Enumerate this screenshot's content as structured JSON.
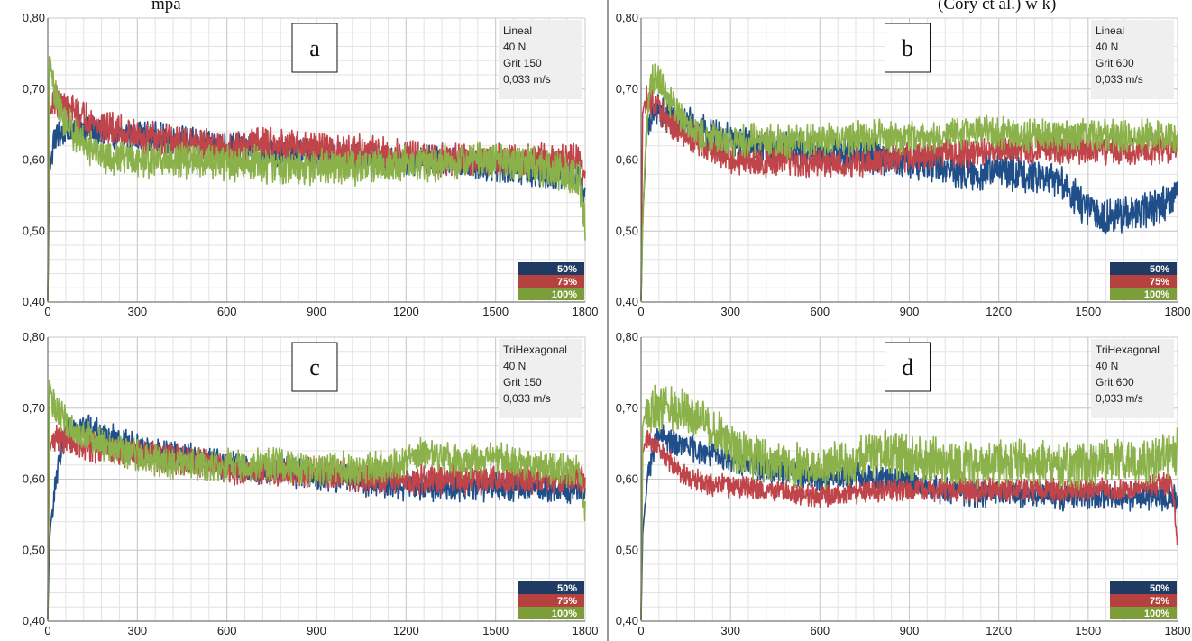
{
  "header": {
    "left_text": "mpa",
    "right_text": "(Cory ct al.) w k)"
  },
  "chart_data": [
    {
      "type": "line",
      "panel_letter": "a",
      "info": [
        "Lineal",
        "40 N",
        "Grit 150",
        "0,033 m/s"
      ],
      "x_ticks": [
        "0",
        "300",
        "600",
        "900",
        "1200",
        "1500",
        "1800"
      ],
      "y_ticks": [
        "0,40",
        "0,50",
        "0,60",
        "0,70",
        "0,80"
      ],
      "xlim": [
        0,
        1800
      ],
      "ylim": [
        0.4,
        0.8
      ],
      "grid": true,
      "legend": [
        "50%",
        "75%",
        "100%"
      ],
      "legend_position": "bottom-right",
      "series": [
        {
          "name": "50%",
          "color": "#1f4e89",
          "noise": 0.018,
          "x": [
            0,
            5,
            20,
            50,
            100,
            200,
            300,
            400,
            500,
            600,
            700,
            800,
            900,
            1000,
            1100,
            1200,
            1300,
            1400,
            1500,
            1600,
            1700,
            1780,
            1800
          ],
          "y": [
            0.4,
            0.58,
            0.63,
            0.64,
            0.645,
            0.635,
            0.635,
            0.63,
            0.625,
            0.62,
            0.615,
            0.61,
            0.61,
            0.605,
            0.6,
            0.6,
            0.6,
            0.595,
            0.59,
            0.585,
            0.58,
            0.575,
            0.55
          ]
        },
        {
          "name": "75%",
          "color": "#c0454a",
          "noise": 0.02,
          "x": [
            0,
            5,
            20,
            50,
            100,
            200,
            300,
            400,
            500,
            600,
            700,
            800,
            900,
            1000,
            1100,
            1200,
            1300,
            1400,
            1500,
            1600,
            1700,
            1780,
            1800
          ],
          "y": [
            0.4,
            0.66,
            0.685,
            0.675,
            0.665,
            0.645,
            0.635,
            0.625,
            0.62,
            0.615,
            0.625,
            0.62,
            0.615,
            0.615,
            0.61,
            0.605,
            0.6,
            0.6,
            0.6,
            0.6,
            0.6,
            0.6,
            0.57
          ]
        },
        {
          "name": "100%",
          "color": "#8bb14a",
          "noise": 0.022,
          "x": [
            0,
            5,
            20,
            50,
            100,
            200,
            300,
            400,
            500,
            600,
            700,
            800,
            900,
            1000,
            1100,
            1200,
            1300,
            1400,
            1500,
            1600,
            1700,
            1780,
            1800
          ],
          "y": [
            0.4,
            0.75,
            0.7,
            0.66,
            0.63,
            0.605,
            0.6,
            0.6,
            0.6,
            0.595,
            0.595,
            0.59,
            0.59,
            0.59,
            0.59,
            0.595,
            0.595,
            0.6,
            0.6,
            0.595,
            0.585,
            0.575,
            0.51
          ]
        }
      ]
    },
    {
      "type": "line",
      "panel_letter": "b",
      "info": [
        "Lineal",
        "40 N",
        "Grit 600",
        "0,033 m/s"
      ],
      "x_ticks": [
        "0",
        "300",
        "600",
        "900",
        "1200",
        "1500",
        "1800"
      ],
      "y_ticks": [
        "0,40",
        "0,50",
        "0,60",
        "0,70",
        "0,80"
      ],
      "xlim": [
        0,
        1800
      ],
      "ylim": [
        0.4,
        0.8
      ],
      "grid": true,
      "legend": [
        "50%",
        "75%",
        "100%"
      ],
      "legend_position": "bottom-right",
      "series": [
        {
          "name": "50%",
          "color": "#1f4e89",
          "noise": 0.022,
          "x": [
            0,
            5,
            20,
            50,
            100,
            200,
            300,
            400,
            500,
            600,
            700,
            800,
            900,
            1000,
            1100,
            1200,
            1300,
            1400,
            1450,
            1500,
            1550,
            1600,
            1700,
            1780,
            1800
          ],
          "y": [
            0.4,
            0.52,
            0.64,
            0.67,
            0.66,
            0.64,
            0.625,
            0.62,
            0.615,
            0.61,
            0.61,
            0.605,
            0.6,
            0.59,
            0.58,
            0.585,
            0.58,
            0.57,
            0.55,
            0.53,
            0.52,
            0.52,
            0.53,
            0.545,
            0.56
          ]
        },
        {
          "name": "75%",
          "color": "#c0454a",
          "noise": 0.018,
          "x": [
            0,
            5,
            20,
            50,
            100,
            200,
            300,
            400,
            500,
            600,
            700,
            800,
            900,
            1000,
            1100,
            1200,
            1300,
            1400,
            1500,
            1600,
            1700,
            1780,
            1800
          ],
          "y": [
            0.4,
            0.67,
            0.69,
            0.675,
            0.65,
            0.625,
            0.6,
            0.595,
            0.6,
            0.595,
            0.595,
            0.6,
            0.605,
            0.61,
            0.61,
            0.615,
            0.615,
            0.615,
            0.615,
            0.615,
            0.615,
            0.615,
            0.62
          ]
        },
        {
          "name": "100%",
          "color": "#8bb14a",
          "noise": 0.02,
          "x": [
            0,
            5,
            15,
            30,
            50,
            100,
            200,
            300,
            400,
            500,
            600,
            700,
            800,
            900,
            1000,
            1100,
            1200,
            1300,
            1400,
            1500,
            1600,
            1700,
            1780,
            1800
          ],
          "y": [
            0.4,
            0.5,
            0.62,
            0.71,
            0.72,
            0.68,
            0.635,
            0.625,
            0.63,
            0.625,
            0.63,
            0.63,
            0.635,
            0.63,
            0.635,
            0.64,
            0.64,
            0.635,
            0.635,
            0.635,
            0.635,
            0.635,
            0.635,
            0.62
          ]
        }
      ]
    },
    {
      "type": "line",
      "panel_letter": "c",
      "info": [
        "TriHexagonal",
        "40 N",
        "Grit 150",
        "0,033 m/s"
      ],
      "x_ticks": [
        "0",
        "300",
        "600",
        "900",
        "1200",
        "1500",
        "1800"
      ],
      "y_ticks": [
        "0,40",
        "0,50",
        "0,60",
        "0,70",
        "0,80"
      ],
      "xlim": [
        0,
        1800
      ],
      "ylim": [
        0.4,
        0.8
      ],
      "grid": true,
      "legend": [
        "50%",
        "75%",
        "100%"
      ],
      "legend_position": "bottom-right",
      "series": [
        {
          "name": "50%",
          "color": "#1f4e89",
          "noise": 0.018,
          "x": [
            0,
            5,
            20,
            50,
            80,
            100,
            200,
            300,
            400,
            500,
            600,
            700,
            800,
            900,
            1000,
            1100,
            1200,
            1300,
            1400,
            1500,
            1600,
            1700,
            1780,
            1800
          ],
          "y": [
            0.4,
            0.51,
            0.58,
            0.65,
            0.68,
            0.675,
            0.66,
            0.645,
            0.635,
            0.63,
            0.62,
            0.61,
            0.61,
            0.605,
            0.6,
            0.595,
            0.59,
            0.59,
            0.59,
            0.59,
            0.59,
            0.585,
            0.585,
            0.58
          ]
        },
        {
          "name": "75%",
          "color": "#c0454a",
          "noise": 0.018,
          "x": [
            0,
            5,
            20,
            50,
            100,
            200,
            300,
            400,
            500,
            600,
            700,
            800,
            900,
            1000,
            1100,
            1200,
            1300,
            1400,
            1500,
            1600,
            1700,
            1780,
            1800
          ],
          "y": [
            0.4,
            0.64,
            0.66,
            0.655,
            0.65,
            0.64,
            0.635,
            0.63,
            0.625,
            0.615,
            0.61,
            0.61,
            0.61,
            0.605,
            0.6,
            0.6,
            0.6,
            0.6,
            0.6,
            0.6,
            0.6,
            0.6,
            0.59
          ]
        },
        {
          "name": "100%",
          "color": "#8bb14a",
          "noise": 0.02,
          "x": [
            0,
            5,
            20,
            50,
            100,
            200,
            300,
            400,
            500,
            600,
            700,
            800,
            900,
            1000,
            1100,
            1200,
            1250,
            1300,
            1400,
            1500,
            1600,
            1700,
            1780,
            1800
          ],
          "y": [
            0.4,
            0.74,
            0.7,
            0.685,
            0.665,
            0.645,
            0.635,
            0.625,
            0.62,
            0.62,
            0.62,
            0.62,
            0.615,
            0.615,
            0.615,
            0.625,
            0.64,
            0.635,
            0.625,
            0.63,
            0.62,
            0.615,
            0.61,
            0.55
          ]
        }
      ]
    },
    {
      "type": "line",
      "panel_letter": "d",
      "info": [
        "TriHexagonal",
        "40 N",
        "Grit 600",
        "0,033 m/s"
      ],
      "x_ticks": [
        "0",
        "300",
        "600",
        "900",
        "1200",
        "1500",
        "1800"
      ],
      "y_ticks": [
        "0,40",
        "0,50",
        "0,60",
        "0,70",
        "0,80"
      ],
      "xlim": [
        0,
        1800
      ],
      "ylim": [
        0.4,
        0.8
      ],
      "grid": true,
      "legend": [
        "50%",
        "75%",
        "100%"
      ],
      "legend_position": "bottom-right",
      "series": [
        {
          "name": "50%",
          "color": "#1f4e89",
          "noise": 0.016,
          "x": [
            0,
            5,
            20,
            50,
            80,
            100,
            200,
            300,
            400,
            500,
            600,
            700,
            800,
            900,
            1000,
            1100,
            1200,
            1300,
            1400,
            1500,
            1600,
            1700,
            1780,
            1800
          ],
          "y": [
            0.4,
            0.52,
            0.6,
            0.655,
            0.66,
            0.65,
            0.64,
            0.63,
            0.615,
            0.61,
            0.6,
            0.605,
            0.6,
            0.595,
            0.585,
            0.58,
            0.58,
            0.58,
            0.575,
            0.575,
            0.575,
            0.575,
            0.575,
            0.57
          ]
        },
        {
          "name": "75%",
          "color": "#c0454a",
          "noise": 0.014,
          "x": [
            0,
            5,
            20,
            50,
            100,
            150,
            200,
            300,
            400,
            500,
            600,
            700,
            800,
            900,
            1000,
            1100,
            1200,
            1300,
            1400,
            1500,
            1600,
            1700,
            1780,
            1800
          ],
          "y": [
            0.4,
            0.64,
            0.655,
            0.645,
            0.625,
            0.605,
            0.595,
            0.59,
            0.585,
            0.58,
            0.575,
            0.58,
            0.585,
            0.585,
            0.585,
            0.585,
            0.585,
            0.585,
            0.585,
            0.585,
            0.585,
            0.59,
            0.595,
            0.51
          ]
        },
        {
          "name": "100%",
          "color": "#8bb14a",
          "noise": 0.028,
          "x": [
            0,
            5,
            20,
            50,
            100,
            150,
            200,
            250,
            300,
            400,
            500,
            600,
            700,
            800,
            900,
            1000,
            1100,
            1200,
            1300,
            1400,
            1500,
            1600,
            1700,
            1780,
            1800
          ],
          "y": [
            0.4,
            0.68,
            0.69,
            0.7,
            0.7,
            0.695,
            0.685,
            0.665,
            0.645,
            0.63,
            0.62,
            0.615,
            0.625,
            0.64,
            0.63,
            0.625,
            0.62,
            0.625,
            0.625,
            0.62,
            0.62,
            0.625,
            0.625,
            0.635,
            0.64
          ]
        }
      ]
    }
  ]
}
